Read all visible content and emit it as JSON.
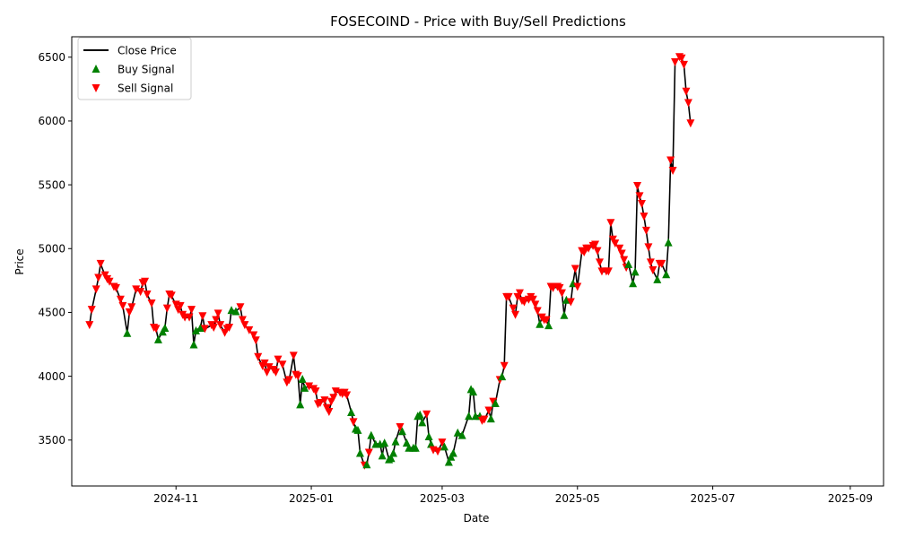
{
  "chart_data": {
    "type": "line",
    "title": "FOSECOIND - Price with Buy/Sell Predictions",
    "xlabel": "Date",
    "ylabel": "Price",
    "xlim": [
      "2024-09-15",
      "2025-09-16"
    ],
    "ylim": [
      3140,
      6660
    ],
    "grid": false,
    "legend_position": "top-left",
    "x_tick_labels": [
      {
        "date": "2024-11-01",
        "label": "2024-11"
      },
      {
        "date": "2025-01-01",
        "label": "2025-01"
      },
      {
        "date": "2025-03-01",
        "label": "2025-03"
      },
      {
        "date": "2025-05-01",
        "label": "2025-05"
      },
      {
        "date": "2025-07-01",
        "label": "2025-07"
      },
      {
        "date": "2025-09-01",
        "label": "2025-09"
      }
    ],
    "y_ticks": [
      3500,
      4000,
      4500,
      5000,
      5500,
      6000,
      6500
    ],
    "colors": {
      "line": "#000000",
      "buy": "#008000",
      "sell": "#ff0000"
    },
    "series": [
      {
        "name": "Close Price",
        "kind": "line",
        "color": "#000000"
      },
      {
        "name": "Buy Signal",
        "kind": "marker",
        "marker": "triangle-up",
        "color": "#008000"
      },
      {
        "name": "Sell Signal",
        "kind": "marker",
        "marker": "triangle-down",
        "color": "#ff0000"
      }
    ],
    "points": [
      [
        "2024-09-23",
        4400,
        "S"
      ],
      [
        "2024-09-24",
        4520,
        "S"
      ],
      [
        "2024-09-26",
        4680,
        "S"
      ],
      [
        "2024-09-27",
        4770,
        "S"
      ],
      [
        "2024-09-28",
        4880,
        "S"
      ],
      [
        "2024-09-30",
        4790,
        "S"
      ],
      [
        "2024-10-01",
        4760,
        "S"
      ],
      [
        "2024-10-02",
        4740,
        "S"
      ],
      [
        "2024-10-04",
        4700,
        "S"
      ],
      [
        "2024-10-05",
        4690,
        "S"
      ],
      [
        "2024-10-07",
        4600,
        "S"
      ],
      [
        "2024-10-08",
        4550,
        "S"
      ],
      [
        "2024-10-10",
        4340,
        "B"
      ],
      [
        "2024-10-11",
        4500,
        "S"
      ],
      [
        "2024-10-12",
        4540,
        "S"
      ],
      [
        "2024-10-14",
        4680,
        "S"
      ],
      [
        "2024-10-16",
        4660,
        "S"
      ],
      [
        "2024-10-17",
        4730,
        "S"
      ],
      [
        "2024-10-18",
        4740,
        "S"
      ],
      [
        "2024-10-19",
        4640,
        "S"
      ],
      [
        "2024-10-21",
        4570,
        "S"
      ],
      [
        "2024-10-22",
        4380,
        "S"
      ],
      [
        "2024-10-23",
        4370,
        "S"
      ],
      [
        "2024-10-24",
        4290,
        "B"
      ],
      [
        "2024-10-26",
        4350,
        "B"
      ],
      [
        "2024-10-27",
        4380,
        "B"
      ],
      [
        "2024-10-28",
        4530,
        "S"
      ],
      [
        "2024-10-29",
        4640,
        "S"
      ],
      [
        "2024-10-30",
        4630,
        "S"
      ],
      [
        "2024-11-01",
        4560,
        "S"
      ],
      [
        "2024-11-02",
        4520,
        "S"
      ],
      [
        "2024-11-03",
        4550,
        "S"
      ],
      [
        "2024-11-04",
        4480,
        "S"
      ],
      [
        "2024-11-05",
        4460,
        "S"
      ],
      [
        "2024-11-07",
        4460,
        "S"
      ],
      [
        "2024-11-08",
        4520,
        "S"
      ],
      [
        "2024-11-09",
        4250,
        "B"
      ],
      [
        "2024-11-10",
        4360,
        "B"
      ],
      [
        "2024-11-12",
        4380,
        "B"
      ],
      [
        "2024-11-13",
        4470,
        "S"
      ],
      [
        "2024-11-14",
        4370,
        "S"
      ],
      [
        "2024-11-17",
        4400,
        "S"
      ],
      [
        "2024-11-18",
        4380,
        "S"
      ],
      [
        "2024-11-19",
        4440,
        "S"
      ],
      [
        "2024-11-20",
        4490,
        "S"
      ],
      [
        "2024-11-21",
        4400,
        "S"
      ],
      [
        "2024-11-23",
        4340,
        "S"
      ],
      [
        "2024-11-24",
        4370,
        "S"
      ],
      [
        "2024-11-25",
        4380,
        "S"
      ],
      [
        "2024-11-26",
        4520,
        "B"
      ],
      [
        "2024-11-28",
        4510,
        "B"
      ],
      [
        "2024-11-30",
        4540,
        "S"
      ],
      [
        "2024-12-01",
        4440,
        "S"
      ],
      [
        "2024-12-02",
        4400,
        "S"
      ],
      [
        "2024-12-04",
        4360,
        "S"
      ],
      [
        "2024-12-06",
        4320,
        "S"
      ],
      [
        "2024-12-07",
        4280,
        "S"
      ],
      [
        "2024-12-08",
        4150,
        "S"
      ],
      [
        "2024-12-10",
        4080,
        "S"
      ],
      [
        "2024-12-11",
        4100,
        "S"
      ],
      [
        "2024-12-12",
        4030,
        "S"
      ],
      [
        "2024-12-13",
        4070,
        "S"
      ],
      [
        "2024-12-15",
        4050,
        "S"
      ],
      [
        "2024-12-16",
        4030,
        "S"
      ],
      [
        "2024-12-17",
        4130,
        "S"
      ],
      [
        "2024-12-19",
        4090,
        "S"
      ],
      [
        "2024-12-21",
        3950,
        "S"
      ],
      [
        "2024-12-22",
        3970,
        "S"
      ],
      [
        "2024-12-24",
        4160,
        "S"
      ],
      [
        "2024-12-25",
        4010,
        "S"
      ],
      [
        "2024-12-26",
        4000,
        "S"
      ],
      [
        "2024-12-27",
        3780,
        "B"
      ],
      [
        "2024-12-28",
        3980,
        "B"
      ],
      [
        "2024-12-29",
        3910,
        "B"
      ],
      [
        "2024-12-31",
        3920,
        "S"
      ],
      [
        "2025-01-02",
        3900,
        "S"
      ],
      [
        "2025-01-03",
        3880,
        "S"
      ],
      [
        "2025-01-04",
        3780,
        "S"
      ],
      [
        "2025-01-05",
        3790,
        "S"
      ],
      [
        "2025-01-07",
        3810,
        "S"
      ],
      [
        "2025-01-08",
        3750,
        "S"
      ],
      [
        "2025-01-09",
        3720,
        "S"
      ],
      [
        "2025-01-10",
        3800,
        "S"
      ],
      [
        "2025-01-11",
        3830,
        "S"
      ],
      [
        "2025-01-12",
        3880,
        "S"
      ],
      [
        "2025-01-14",
        3870,
        "S"
      ],
      [
        "2025-01-15",
        3860,
        "S"
      ],
      [
        "2025-01-16",
        3870,
        "S"
      ],
      [
        "2025-01-17",
        3850,
        "S"
      ],
      [
        "2025-01-19",
        3720,
        "B"
      ],
      [
        "2025-01-20",
        3640,
        "S"
      ],
      [
        "2025-01-21",
        3590,
        "B"
      ],
      [
        "2025-01-22",
        3580,
        "B"
      ],
      [
        "2025-01-23",
        3400,
        "B"
      ],
      [
        "2025-01-25",
        3300,
        "S"
      ],
      [
        "2025-01-26",
        3310,
        "B"
      ],
      [
        "2025-01-27",
        3400,
        "S"
      ],
      [
        "2025-01-28",
        3540,
        "B"
      ],
      [
        "2025-01-30",
        3470,
        "B"
      ],
      [
        "2025-02-01",
        3470,
        "B"
      ],
      [
        "2025-02-02",
        3380,
        "B"
      ],
      [
        "2025-02-03",
        3480,
        "B"
      ],
      [
        "2025-02-05",
        3350,
        "B"
      ],
      [
        "2025-02-06",
        3360,
        "B"
      ],
      [
        "2025-02-07",
        3400,
        "B"
      ],
      [
        "2025-02-08",
        3490,
        "B"
      ],
      [
        "2025-02-10",
        3600,
        "S"
      ],
      [
        "2025-02-11",
        3570,
        "B"
      ],
      [
        "2025-02-13",
        3480,
        "B"
      ],
      [
        "2025-02-14",
        3440,
        "B"
      ],
      [
        "2025-02-16",
        3440,
        "B"
      ],
      [
        "2025-02-17",
        3440,
        "B"
      ],
      [
        "2025-02-18",
        3690,
        "B"
      ],
      [
        "2025-02-19",
        3700,
        "B"
      ],
      [
        "2025-02-20",
        3640,
        "B"
      ],
      [
        "2025-02-22",
        3700,
        "S"
      ],
      [
        "2025-02-23",
        3530,
        "B"
      ],
      [
        "2025-02-24",
        3470,
        "B"
      ],
      [
        "2025-02-25",
        3420,
        "S"
      ],
      [
        "2025-02-27",
        3410,
        "S"
      ],
      [
        "2025-03-01",
        3480,
        "S"
      ],
      [
        "2025-03-02",
        3450,
        "B"
      ],
      [
        "2025-03-04",
        3330,
        "B"
      ],
      [
        "2025-03-05",
        3370,
        "B"
      ],
      [
        "2025-03-06",
        3400,
        "B"
      ],
      [
        "2025-03-08",
        3560,
        "B"
      ],
      [
        "2025-03-10",
        3540,
        "B"
      ],
      [
        "2025-03-13",
        3690,
        "B"
      ],
      [
        "2025-03-14",
        3900,
        "B"
      ],
      [
        "2025-03-15",
        3880,
        "B"
      ],
      [
        "2025-03-16",
        3690,
        "B"
      ],
      [
        "2025-03-18",
        3690,
        "B"
      ],
      [
        "2025-03-19",
        3650,
        "S"
      ],
      [
        "2025-03-20",
        3660,
        "S"
      ],
      [
        "2025-03-22",
        3730,
        "S"
      ],
      [
        "2025-03-23",
        3670,
        "B"
      ],
      [
        "2025-03-24",
        3800,
        "S"
      ],
      [
        "2025-03-25",
        3790,
        "B"
      ],
      [
        "2025-03-27",
        3970,
        "S"
      ],
      [
        "2025-03-28",
        4000,
        "B"
      ],
      [
        "2025-03-29",
        4080,
        "S"
      ],
      [
        "2025-03-30",
        4620,
        "S"
      ],
      [
        "2025-03-31",
        4620,
        "S"
      ],
      [
        "2025-04-02",
        4530,
        "S"
      ],
      [
        "2025-04-03",
        4480,
        "S"
      ],
      [
        "2025-04-04",
        4620,
        "S"
      ],
      [
        "2025-04-05",
        4650,
        "S"
      ],
      [
        "2025-04-06",
        4590,
        "S"
      ],
      [
        "2025-04-07",
        4580,
        "S"
      ],
      [
        "2025-04-09",
        4600,
        "S"
      ],
      [
        "2025-04-10",
        4620,
        "S"
      ],
      [
        "2025-04-11",
        4600,
        "S"
      ],
      [
        "2025-04-12",
        4560,
        "S"
      ],
      [
        "2025-04-13",
        4510,
        "S"
      ],
      [
        "2025-04-14",
        4410,
        "B"
      ],
      [
        "2025-04-15",
        4460,
        "S"
      ],
      [
        "2025-04-16",
        4440,
        "S"
      ],
      [
        "2025-04-17",
        4440,
        "S"
      ],
      [
        "2025-04-18",
        4400,
        "B"
      ],
      [
        "2025-04-19",
        4700,
        "S"
      ],
      [
        "2025-04-20",
        4690,
        "S"
      ],
      [
        "2025-04-22",
        4700,
        "S"
      ],
      [
        "2025-04-23",
        4690,
        "S"
      ],
      [
        "2025-04-24",
        4650,
        "S"
      ],
      [
        "2025-04-25",
        4480,
        "B"
      ],
      [
        "2025-04-26",
        4600,
        "B"
      ],
      [
        "2025-04-28",
        4580,
        "S"
      ],
      [
        "2025-04-29",
        4730,
        "B"
      ],
      [
        "2025-04-30",
        4840,
        "S"
      ],
      [
        "2025-05-01",
        4700,
        "S"
      ],
      [
        "2025-05-03",
        4980,
        "S"
      ],
      [
        "2025-05-04",
        4970,
        "S"
      ],
      [
        "2025-05-05",
        5000,
        "S"
      ],
      [
        "2025-05-06",
        5000,
        "S"
      ],
      [
        "2025-05-08",
        5020,
        "S"
      ],
      [
        "2025-05-09",
        5030,
        "S"
      ],
      [
        "2025-05-10",
        4980,
        "S"
      ],
      [
        "2025-05-11",
        4890,
        "S"
      ],
      [
        "2025-05-12",
        4820,
        "S"
      ],
      [
        "2025-05-14",
        4820,
        "S"
      ],
      [
        "2025-05-15",
        4820,
        "S"
      ],
      [
        "2025-05-16",
        5200,
        "S"
      ],
      [
        "2025-05-17",
        5070,
        "S"
      ],
      [
        "2025-05-18",
        5040,
        "S"
      ],
      [
        "2025-05-20",
        5000,
        "S"
      ],
      [
        "2025-05-21",
        4960,
        "S"
      ],
      [
        "2025-05-22",
        4910,
        "S"
      ],
      [
        "2025-05-23",
        4850,
        "S"
      ],
      [
        "2025-05-24",
        4880,
        "B"
      ],
      [
        "2025-05-26",
        4730,
        "B"
      ],
      [
        "2025-05-27",
        4820,
        "B"
      ],
      [
        "2025-05-28",
        5490,
        "S"
      ],
      [
        "2025-05-29",
        5410,
        "S"
      ],
      [
        "2025-05-30",
        5350,
        "S"
      ],
      [
        "2025-05-31",
        5250,
        "S"
      ],
      [
        "2025-06-01",
        5140,
        "S"
      ],
      [
        "2025-06-02",
        5010,
        "S"
      ],
      [
        "2025-06-03",
        4890,
        "S"
      ],
      [
        "2025-06-04",
        4830,
        "S"
      ],
      [
        "2025-06-06",
        4760,
        "B"
      ],
      [
        "2025-06-07",
        4880,
        "S"
      ],
      [
        "2025-06-08",
        4880,
        "S"
      ],
      [
        "2025-06-10",
        4800,
        "B"
      ],
      [
        "2025-06-11",
        5050,
        "B"
      ],
      [
        "2025-06-12",
        5690,
        "S"
      ],
      [
        "2025-06-13",
        5610,
        "S"
      ],
      [
        "2025-06-14",
        6460,
        "S"
      ],
      [
        "2025-06-16",
        6500,
        "S"
      ],
      [
        "2025-06-17",
        6490,
        "S"
      ],
      [
        "2025-06-18",
        6440,
        "S"
      ],
      [
        "2025-06-19",
        6230,
        "S"
      ],
      [
        "2025-06-20",
        6140,
        "S"
      ],
      [
        "2025-06-21",
        5980,
        "S"
      ]
    ]
  },
  "legend": {
    "line_label": "Close Price",
    "buy_label": "Buy Signal",
    "sell_label": "Sell Signal"
  }
}
